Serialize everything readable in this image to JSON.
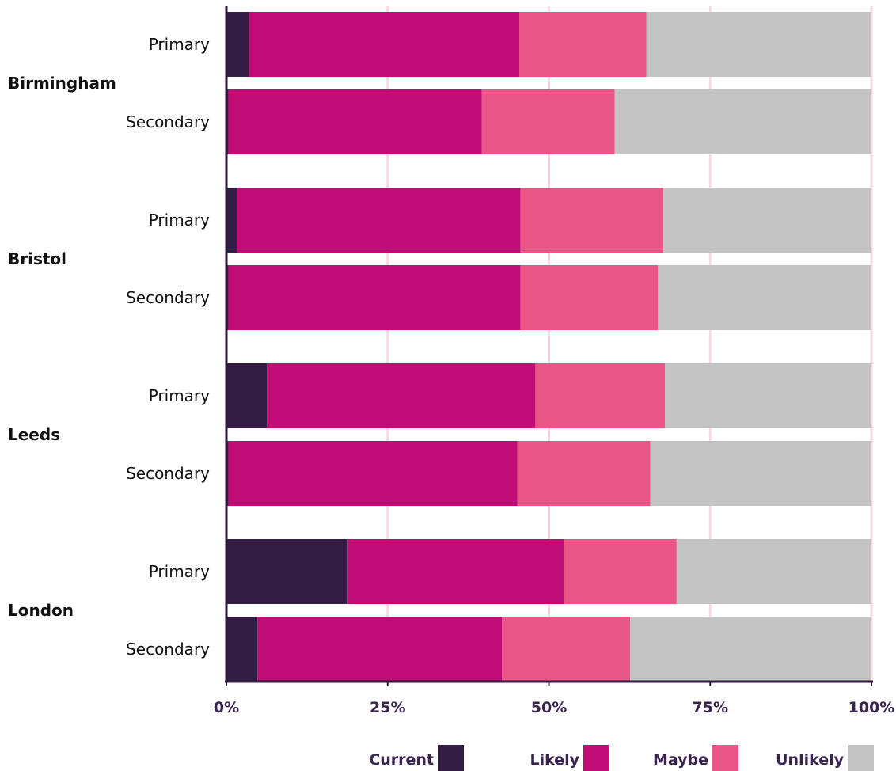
{
  "chart_data": {
    "type": "bar",
    "orientation": "horizontal",
    "stacked": true,
    "groups": [
      {
        "name": "Birmingham",
        "rows": [
          {
            "label": "Primary",
            "values": [
              3.5,
              41.9,
              19.7,
              34.9
            ]
          },
          {
            "label": "Secondary",
            "values": [
              0.3,
              39.3,
              20.6,
              39.8
            ]
          }
        ]
      },
      {
        "name": "Bristol",
        "rows": [
          {
            "label": "Primary",
            "values": [
              1.7,
              43.9,
              22.1,
              32.3
            ]
          },
          {
            "label": "Secondary",
            "values": [
              0.3,
              45.3,
              21.3,
              33.1
            ]
          }
        ]
      },
      {
        "name": "Leeds",
        "rows": [
          {
            "label": "Primary",
            "values": [
              6.3,
              41.6,
              20.1,
              32.0
            ]
          },
          {
            "label": "Secondary",
            "values": [
              0.3,
              44.8,
              20.6,
              34.3
            ]
          }
        ]
      },
      {
        "name": "London",
        "rows": [
          {
            "label": "Primary",
            "values": [
              18.8,
              33.5,
              17.5,
              30.2
            ]
          },
          {
            "label": "Secondary",
            "values": [
              4.8,
              37.9,
              19.9,
              37.4
            ]
          }
        ]
      }
    ],
    "series": [
      {
        "name": "Current",
        "color": "#341d44"
      },
      {
        "name": "Likely",
        "color": "#c00d76"
      },
      {
        "name": "Maybe",
        "color": "#e85586"
      },
      {
        "name": "Unlikely",
        "color": "#c4c4c4"
      }
    ],
    "xlim": [
      0,
      100
    ],
    "xticks": [
      0,
      25,
      50,
      75,
      100
    ],
    "xtick_labels": [
      "0%",
      "25%",
      "50%",
      "75%",
      "100%"
    ],
    "grid": "vertical",
    "grid_color": "#f7d9e4",
    "axis_color": "#2d1a3c",
    "legend_position": "bottom"
  }
}
